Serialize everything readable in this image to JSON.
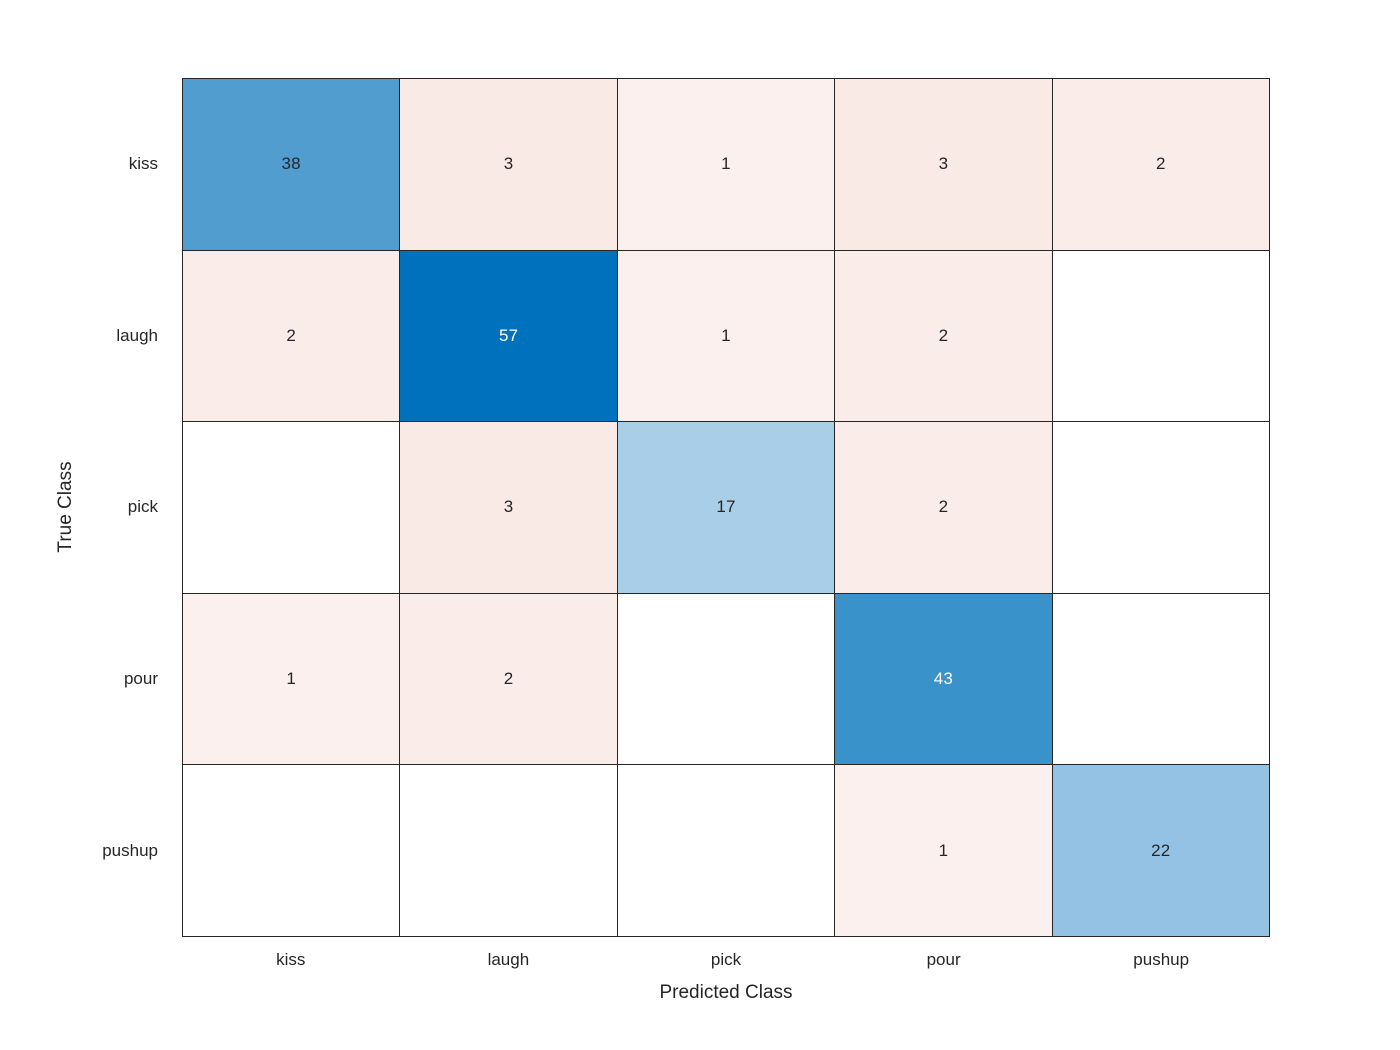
{
  "chart_data": {
    "type": "heatmap",
    "subtype": "confusion-matrix",
    "title": "",
    "xlabel": "Predicted Class",
    "ylabel": "True Class",
    "classes": [
      "kiss",
      "laugh",
      "pick",
      "pour",
      "pushup"
    ],
    "matrix": [
      [
        38,
        3,
        1,
        3,
        2
      ],
      [
        2,
        57,
        1,
        2,
        null
      ],
      [
        null,
        3,
        17,
        2,
        null
      ],
      [
        1,
        2,
        null,
        43,
        null
      ],
      [
        null,
        null,
        null,
        1,
        22
      ]
    ],
    "diagonal_colors": {
      "17": "#A9CEE8",
      "22": "#94C2E4",
      "38": "#529DD0",
      "43": "#3A92CB",
      "57": "#0072BD"
    },
    "offdiagonal_colors": {
      "1": "#FBF0ED",
      "2": "#FAEDE9",
      "3": "#F9EAE5"
    },
    "empty_color": "#FFFFFF",
    "white_text_values": [
      43,
      57
    ],
    "layout": {
      "grid": "on",
      "legend": "none"
    }
  },
  "colors": {
    "grid_line": "#262626",
    "text": "#262626",
    "cell_text_light": "#FFFFFF",
    "background": "#FFFFFF",
    "diagonal_max": "#0072BD"
  }
}
